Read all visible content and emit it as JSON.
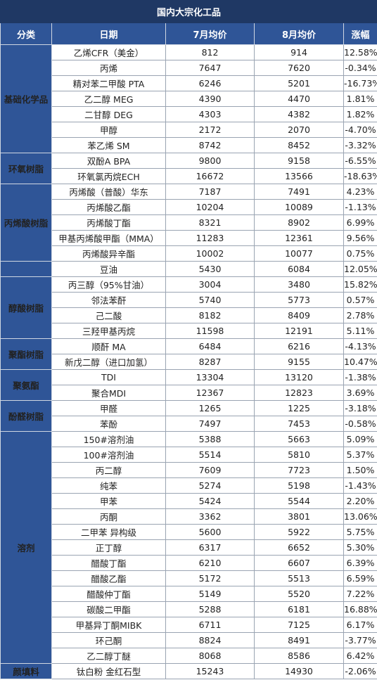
{
  "title": "国内大宗化工品",
  "headers": {
    "category": "分类",
    "name": "日期",
    "jul": "7月均价",
    "aug": "8月均价",
    "change": "涨幅"
  },
  "colors": {
    "header_bg": "#2f5597",
    "title_bg": "#1f3864",
    "up": "#e0161c",
    "down": "#21a336"
  },
  "groups": [
    {
      "category": "基础化学品",
      "rows": [
        {
          "name": "乙烯CFR（美金）",
          "jul": "812",
          "aug": "914",
          "change": "12.58%"
        },
        {
          "name": "丙烯",
          "jul": "7647",
          "aug": "7620",
          "change": "-0.34%"
        },
        {
          "name": "精对苯二甲酸  PTA",
          "jul": "6246",
          "aug": "5201",
          "change": "-16.73%"
        },
        {
          "name": "乙二醇    MEG",
          "jul": "4390",
          "aug": "4470",
          "change": "1.81%"
        },
        {
          "name": "二甘醇    DEG",
          "jul": "4303",
          "aug": "4382",
          "change": "1.82%"
        },
        {
          "name": "甲醇",
          "jul": "2172",
          "aug": "2070",
          "change": "-4.70%"
        },
        {
          "name": "苯乙烯    SM",
          "jul": "8742",
          "aug": "8452",
          "change": "-3.32%"
        }
      ]
    },
    {
      "category": "环氧树脂",
      "rows": [
        {
          "name": "双酚A  BPA",
          "jul": "9800",
          "aug": "9158",
          "change": "-6.55%"
        },
        {
          "name": "环氧氯丙烷ECH",
          "jul": "16672",
          "aug": "13566",
          "change": "-18.63%"
        }
      ]
    },
    {
      "category": "丙烯酸树脂",
      "rows": [
        {
          "name": "丙烯酸（普酸）华东",
          "jul": "7187",
          "aug": "7491",
          "change": "4.23%"
        },
        {
          "name": "丙烯酸乙酯",
          "jul": "10204",
          "aug": "10089",
          "change": "-1.13%"
        },
        {
          "name": "丙烯酸丁酯",
          "jul": "8321",
          "aug": "8902",
          "change": "6.99%"
        },
        {
          "name": "甲基丙烯酸甲酯（MMA）",
          "jul": "11283",
          "aug": "12361",
          "change": "9.56%"
        },
        {
          "name": "丙烯酸异辛酯",
          "jul": "10002",
          "aug": "10077",
          "change": "0.75%"
        }
      ]
    },
    {
      "category": "",
      "rows": [
        {
          "name": "豆油",
          "jul": "5430",
          "aug": "6084",
          "change": "12.05%"
        }
      ]
    },
    {
      "category": "醇酸树脂",
      "rows": [
        {
          "name": "丙三醇（95%甘油）",
          "jul": "3004",
          "aug": "3480",
          "change": "15.82%"
        },
        {
          "name": "邻法苯酐",
          "jul": "5740",
          "aug": "5773",
          "change": "0.57%"
        },
        {
          "name": "己二酸",
          "jul": "8182",
          "aug": "8409",
          "change": "2.78%"
        },
        {
          "name": "三羟甲基丙烷",
          "jul": "11598",
          "aug": "12191",
          "change": "5.11%"
        }
      ]
    },
    {
      "category": "聚酯树脂",
      "rows": [
        {
          "name": "顺酐  MA",
          "jul": "6484",
          "aug": "6216",
          "change": "-4.13%"
        },
        {
          "name": "新戊二醇（进口加氢）",
          "jul": "8287",
          "aug": "9155",
          "change": "10.47%"
        }
      ]
    },
    {
      "category": "聚氨酯",
      "rows": [
        {
          "name": "TDI",
          "jul": "13304",
          "aug": "13120",
          "change": "-1.38%"
        },
        {
          "name": "聚合MDI",
          "jul": "12367",
          "aug": "12823",
          "change": "3.69%"
        }
      ]
    },
    {
      "category": "酚醛树脂",
      "rows": [
        {
          "name": "甲醛",
          "jul": "1265",
          "aug": "1225",
          "change": "-3.18%"
        },
        {
          "name": "苯酚",
          "jul": "7497",
          "aug": "7453",
          "change": "-0.58%"
        }
      ]
    },
    {
      "category": "溶剂",
      "rows": [
        {
          "name": "150#溶剂油",
          "jul": "5388",
          "aug": "5663",
          "change": "5.09%"
        },
        {
          "name": "100#溶剂油",
          "jul": "5514",
          "aug": "5810",
          "change": "5.37%"
        },
        {
          "name": "丙二醇",
          "jul": "7609",
          "aug": "7723",
          "change": "1.50%"
        },
        {
          "name": "纯苯",
          "jul": "5274",
          "aug": "5198",
          "change": "-1.43%"
        },
        {
          "name": "甲苯",
          "jul": "5424",
          "aug": "5544",
          "change": "2.20%"
        },
        {
          "name": "丙酮",
          "jul": "3362",
          "aug": "3801",
          "change": "13.06%"
        },
        {
          "name": "二甲苯 异构级",
          "jul": "5600",
          "aug": "5922",
          "change": "5.75%"
        },
        {
          "name": "正丁醇",
          "jul": "6317",
          "aug": "6652",
          "change": "5.30%"
        },
        {
          "name": "醋酸丁酯",
          "jul": "6210",
          "aug": "6607",
          "change": "6.39%"
        },
        {
          "name": "醋酸乙酯",
          "jul": "5172",
          "aug": "5513",
          "change": "6.59%"
        },
        {
          "name": "醋酸仲丁酯",
          "jul": "5149",
          "aug": "5520",
          "change": "7.22%"
        },
        {
          "name": "碳酸二甲酯",
          "jul": "5288",
          "aug": "6181",
          "change": "16.88%"
        },
        {
          "name": "甲基异丁酮MIBK",
          "jul": "6711",
          "aug": "7125",
          "change": "6.17%"
        },
        {
          "name": "环己酮",
          "jul": "8824",
          "aug": "8491",
          "change": "-3.77%"
        },
        {
          "name": "乙二醇丁醚",
          "jul": "8068",
          "aug": "8586",
          "change": "6.42%"
        }
      ]
    },
    {
      "category": "颜填料",
      "rows": [
        {
          "name": "钛白粉  金红石型",
          "jul": "15243",
          "aug": "14930",
          "change": "-2.06%"
        }
      ]
    }
  ]
}
